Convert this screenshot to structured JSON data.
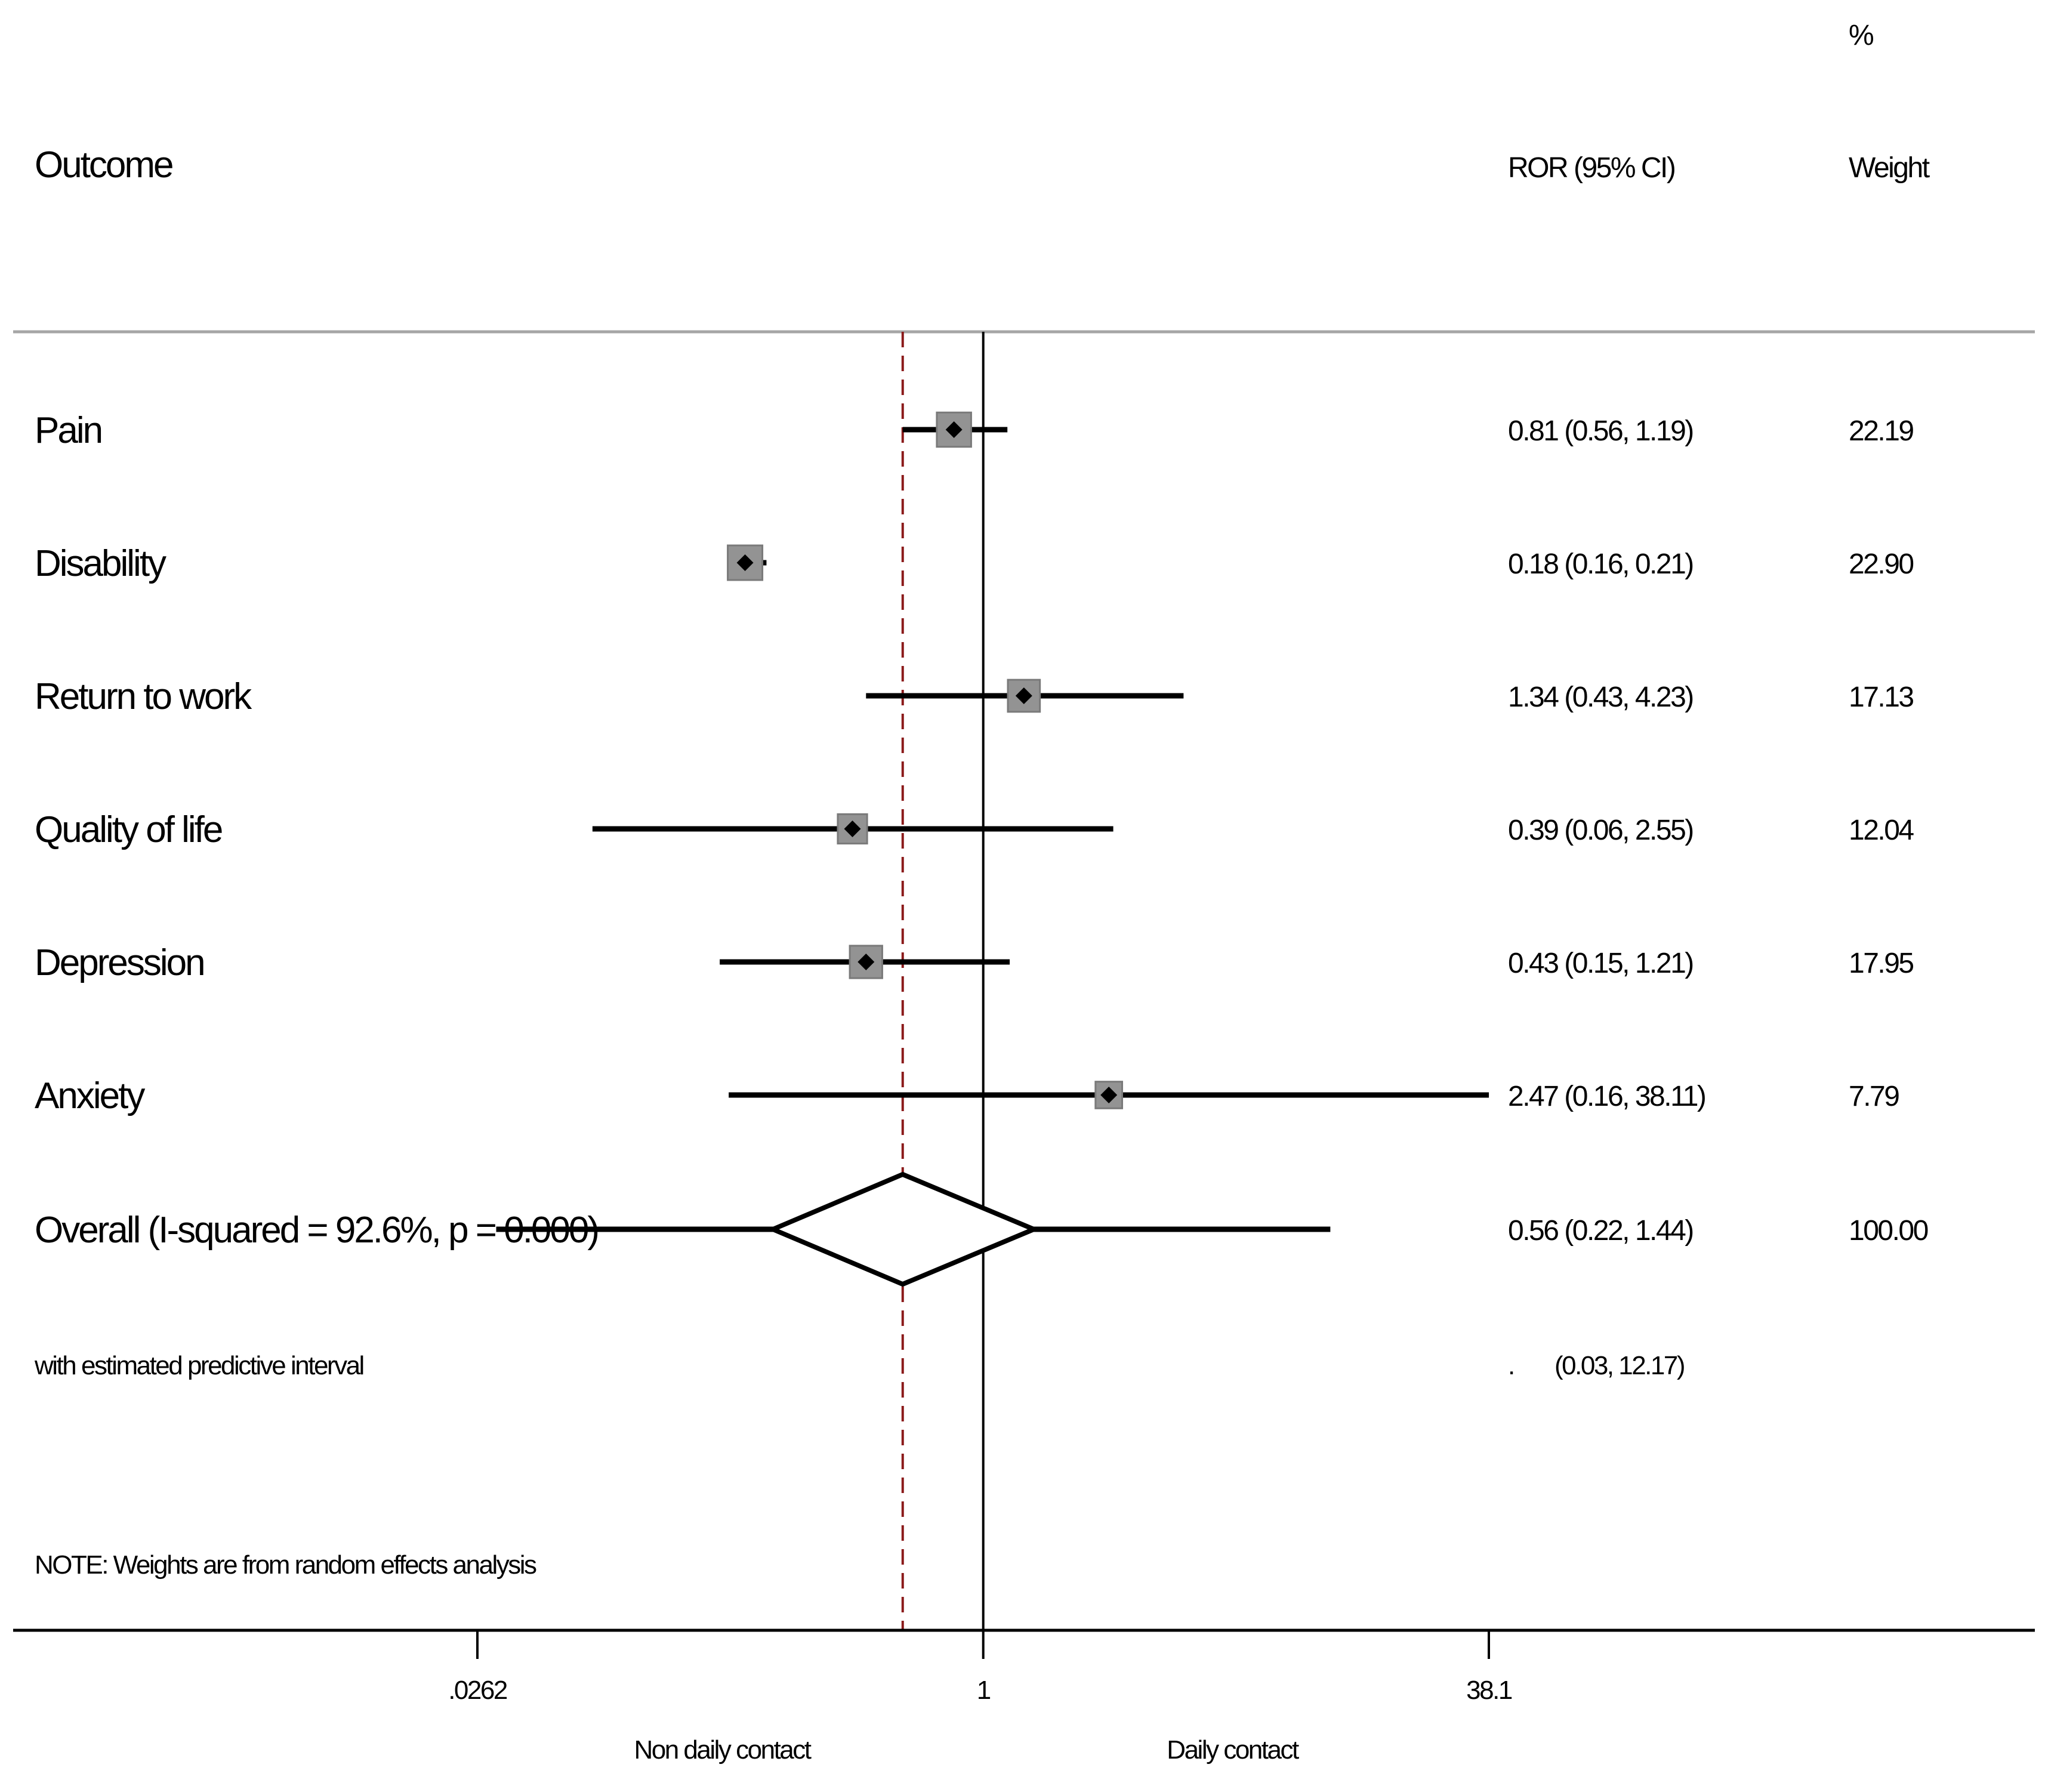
{
  "chart_data": {
    "type": "forest",
    "header": {
      "outcome": "Outcome",
      "effect": "ROR (95% CI)",
      "weight_pct": "%",
      "weight": "Weight"
    },
    "scale": "log",
    "x_ticks": [
      {
        "value": 0.0262,
        "label": ".0262"
      },
      {
        "value": 1,
        "label": "1"
      },
      {
        "value": 38.1,
        "label": "38.1"
      }
    ],
    "x_range": [
      0.0262,
      38.1
    ],
    "null_line": 1,
    "pooled_line": 0.56,
    "side_labels": {
      "left": "Non daily contact",
      "right": "Daily contact"
    },
    "studies": [
      {
        "label": "Pain",
        "est": 0.81,
        "lo": 0.56,
        "hi": 1.19,
        "ci_text": "0.81 (0.56, 1.19)",
        "weight": 22.19,
        "weight_text": "22.19"
      },
      {
        "label": "Disability",
        "est": 0.18,
        "lo": 0.16,
        "hi": 0.21,
        "ci_text": "0.18 (0.16, 0.21)",
        "weight": 22.9,
        "weight_text": "22.90"
      },
      {
        "label": "Return to work",
        "est": 1.34,
        "lo": 0.43,
        "hi": 4.23,
        "ci_text": "1.34 (0.43, 4.23)",
        "weight": 17.13,
        "weight_text": "17.13"
      },
      {
        "label": "Quality of life",
        "est": 0.39,
        "lo": 0.06,
        "hi": 2.55,
        "ci_text": "0.39 (0.06, 2.55)",
        "weight": 12.04,
        "weight_text": "12.04"
      },
      {
        "label": "Depression",
        "est": 0.43,
        "lo": 0.15,
        "hi": 1.21,
        "ci_text": "0.43 (0.15, 1.21)",
        "weight": 17.95,
        "weight_text": "17.95"
      },
      {
        "label": "Anxiety",
        "est": 2.47,
        "lo": 0.16,
        "hi": 38.11,
        "ci_text": "2.47 (0.16, 38.11)",
        "weight": 7.79,
        "weight_text": "7.79"
      }
    ],
    "overall": {
      "label": "Overall  (I-squared = 92.6%, p = 0.000)",
      "est": 0.56,
      "lo": 0.22,
      "hi": 1.44,
      "ci_text": "0.56 (0.22, 1.44)",
      "weight_text": "100.00",
      "pred_lo": 0.03,
      "pred_hi": 12.17
    },
    "predictive": {
      "label": "with estimated predictive interval",
      "dot": ".",
      "ci_text": "(0.03, 12.17)"
    },
    "note": "NOTE: Weights are from random effects analysis"
  }
}
